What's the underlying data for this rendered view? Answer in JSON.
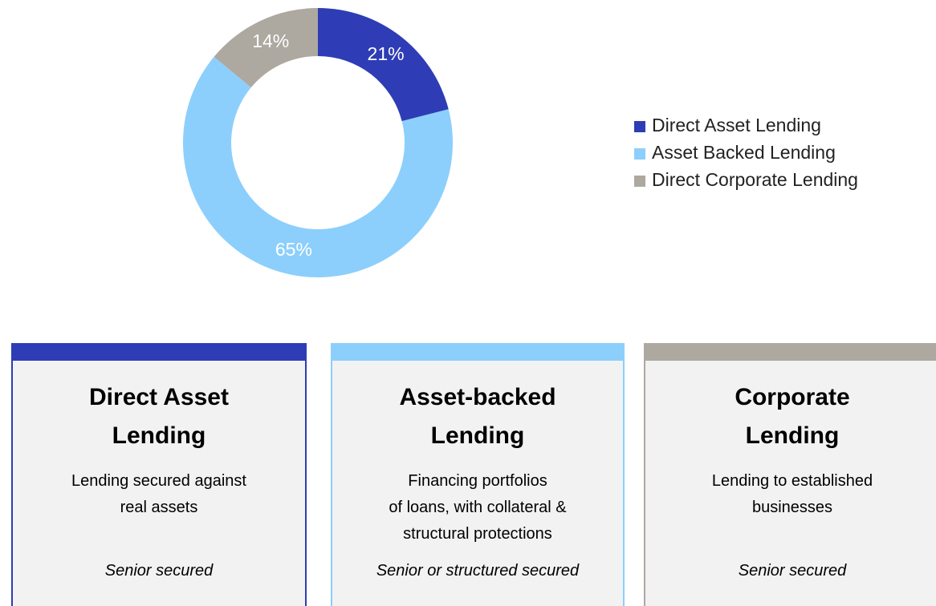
{
  "chart_data": {
    "type": "donut",
    "categories": [
      "Direct Asset Lending",
      "Asset Backed Lending",
      "Direct Corporate Lending"
    ],
    "values": [
      21,
      65,
      14
    ],
    "value_labels": [
      "21%",
      "65%",
      "14%"
    ],
    "colors": [
      "#2e3db5",
      "#8ccffc",
      "#ada8a0"
    ],
    "legend": "right"
  },
  "cards": [
    {
      "color": "#2e3db5",
      "title_lines": [
        "Direct Asset",
        "Lending"
      ],
      "description_lines": [
        "Lending secured against",
        "real assets"
      ],
      "security": "Senior secured"
    },
    {
      "color": "#8ccffc",
      "title_lines": [
        "Asset-backed",
        "Lending"
      ],
      "description_lines": [
        "Financing portfolios",
        "of loans, with collateral &",
        "structural protections"
      ],
      "security": "Senior or structured secured"
    },
    {
      "color": "#ada8a0",
      "title_lines": [
        "Corporate",
        "Lending"
      ],
      "description_lines": [
        "Lending to established",
        "businesses"
      ],
      "security": "Senior secured"
    }
  ]
}
